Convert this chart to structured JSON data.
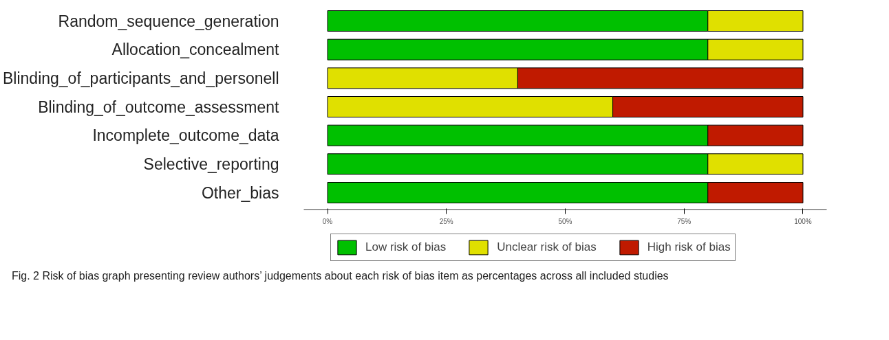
{
  "chart_data": {
    "type": "bar",
    "orientation": "horizontal",
    "stacked": true,
    "categories": [
      "Random_sequence_generation",
      "Allocation_concealment",
      "Blinding_of_participants_and_personell",
      "Blinding_of_outcome_assessment",
      "Incomplete_outcome_data",
      "Selective_reporting",
      "Other_bias"
    ],
    "series": [
      {
        "name": "Low risk of bias",
        "color": "#00c000",
        "values": [
          80,
          80,
          null,
          null,
          80,
          80,
          80
        ]
      },
      {
        "name": "Unclear risk of bias",
        "color": "#e0e000",
        "values": [
          20,
          20,
          40,
          60,
          null,
          20,
          null
        ]
      },
      {
        "name": "High risk of bias",
        "color": "#c01a00",
        "values": [
          null,
          null,
          60,
          40,
          20,
          null,
          20
        ]
      }
    ],
    "xlim": [
      -5,
      105
    ],
    "xticks": [
      {
        "value": 0,
        "label": "0%"
      },
      {
        "value": 25,
        "label": "25%"
      },
      {
        "value": 50,
        "label": "50%"
      },
      {
        "value": 75,
        "label": "75%"
      },
      {
        "value": 100,
        "label": "100%"
      }
    ],
    "grid": false,
    "legend": "bottom",
    "annotations": [
      "Fig. 2 Risk of bias graph presenting review authors’ judgements about each risk of bias item as percentages across all included studies"
    ]
  }
}
